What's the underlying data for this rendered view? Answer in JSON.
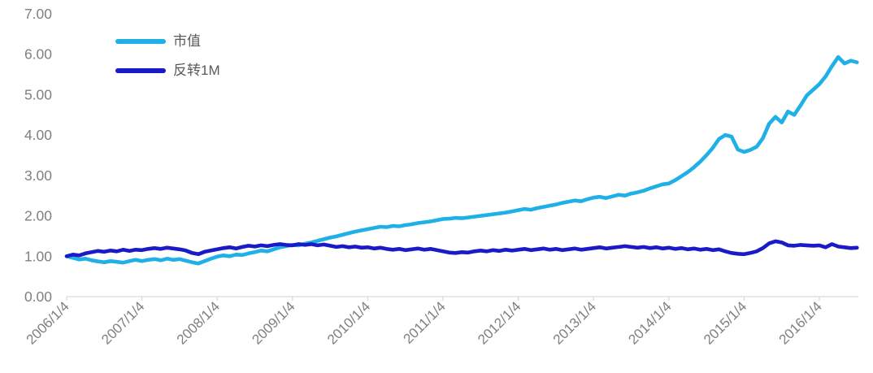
{
  "chart_data": {
    "type": "line",
    "x_start": "2006/1",
    "x_interval": "monthly",
    "x_tick_labels": [
      "2006/1/4",
      "2007/1/4",
      "2008/1/4",
      "2009/1/4",
      "2010/1/4",
      "2011/1/4",
      "2012/1/4",
      "2013/1/4",
      "2014/1/4",
      "2015/1/4",
      "2016/1/4"
    ],
    "y_tick_labels": [
      "0.00",
      "1.00",
      "2.00",
      "3.00",
      "4.00",
      "5.00",
      "6.00",
      "7.00"
    ],
    "ylim": [
      0,
      7
    ],
    "grid": false,
    "legend_position": "top-left",
    "series": [
      {
        "name": "市值",
        "color": "#20B0E8",
        "values": [
          1.0,
          0.96,
          0.92,
          0.94,
          0.9,
          0.87,
          0.85,
          0.88,
          0.86,
          0.84,
          0.88,
          0.91,
          0.88,
          0.91,
          0.93,
          0.9,
          0.94,
          0.91,
          0.93,
          0.89,
          0.85,
          0.82,
          0.88,
          0.94,
          0.99,
          1.02,
          1.0,
          1.04,
          1.03,
          1.07,
          1.1,
          1.14,
          1.12,
          1.17,
          1.22,
          1.25,
          1.28,
          1.27,
          1.31,
          1.34,
          1.38,
          1.42,
          1.46,
          1.49,
          1.53,
          1.57,
          1.61,
          1.64,
          1.67,
          1.7,
          1.73,
          1.72,
          1.75,
          1.74,
          1.77,
          1.79,
          1.82,
          1.84,
          1.86,
          1.89,
          1.92,
          1.93,
          1.95,
          1.94,
          1.96,
          1.98,
          2.0,
          2.02,
          2.04,
          2.06,
          2.08,
          2.11,
          2.14,
          2.17,
          2.15,
          2.19,
          2.22,
          2.25,
          2.28,
          2.32,
          2.35,
          2.38,
          2.36,
          2.41,
          2.45,
          2.47,
          2.44,
          2.48,
          2.52,
          2.5,
          2.55,
          2.58,
          2.62,
          2.68,
          2.73,
          2.78,
          2.8,
          2.88,
          2.98,
          3.08,
          3.2,
          3.34,
          3.5,
          3.68,
          3.9,
          4.0,
          3.96,
          3.64,
          3.58,
          3.63,
          3.71,
          3.92,
          4.28,
          4.45,
          4.31,
          4.58,
          4.5,
          4.73,
          4.98,
          5.12,
          5.26,
          5.45,
          5.7,
          5.93,
          5.77,
          5.84,
          5.8
        ]
      },
      {
        "name": "反转1M",
        "color": "#1A1AC8",
        "values": [
          1.0,
          1.04,
          1.02,
          1.07,
          1.1,
          1.13,
          1.11,
          1.14,
          1.12,
          1.16,
          1.13,
          1.16,
          1.15,
          1.18,
          1.2,
          1.18,
          1.21,
          1.19,
          1.17,
          1.14,
          1.08,
          1.05,
          1.11,
          1.14,
          1.17,
          1.2,
          1.22,
          1.19,
          1.23,
          1.26,
          1.24,
          1.27,
          1.25,
          1.28,
          1.3,
          1.28,
          1.27,
          1.3,
          1.28,
          1.3,
          1.27,
          1.29,
          1.26,
          1.23,
          1.25,
          1.22,
          1.24,
          1.21,
          1.22,
          1.19,
          1.21,
          1.18,
          1.16,
          1.18,
          1.15,
          1.17,
          1.19,
          1.16,
          1.18,
          1.15,
          1.12,
          1.09,
          1.08,
          1.1,
          1.09,
          1.12,
          1.14,
          1.12,
          1.15,
          1.13,
          1.16,
          1.14,
          1.16,
          1.18,
          1.15,
          1.17,
          1.19,
          1.16,
          1.18,
          1.15,
          1.17,
          1.19,
          1.16,
          1.18,
          1.2,
          1.22,
          1.19,
          1.21,
          1.23,
          1.25,
          1.23,
          1.21,
          1.23,
          1.2,
          1.22,
          1.19,
          1.21,
          1.18,
          1.2,
          1.17,
          1.19,
          1.16,
          1.18,
          1.15,
          1.17,
          1.12,
          1.08,
          1.06,
          1.05,
          1.08,
          1.12,
          1.2,
          1.32,
          1.37,
          1.34,
          1.27,
          1.26,
          1.28,
          1.27,
          1.26,
          1.27,
          1.22,
          1.3,
          1.24,
          1.22,
          1.2,
          1.21
        ]
      }
    ]
  },
  "colors": {
    "background": "#FFFFFF",
    "axis_line": "#D9D9D9",
    "axis_text": "#7F7F7F",
    "legend_text": "#595959"
  }
}
